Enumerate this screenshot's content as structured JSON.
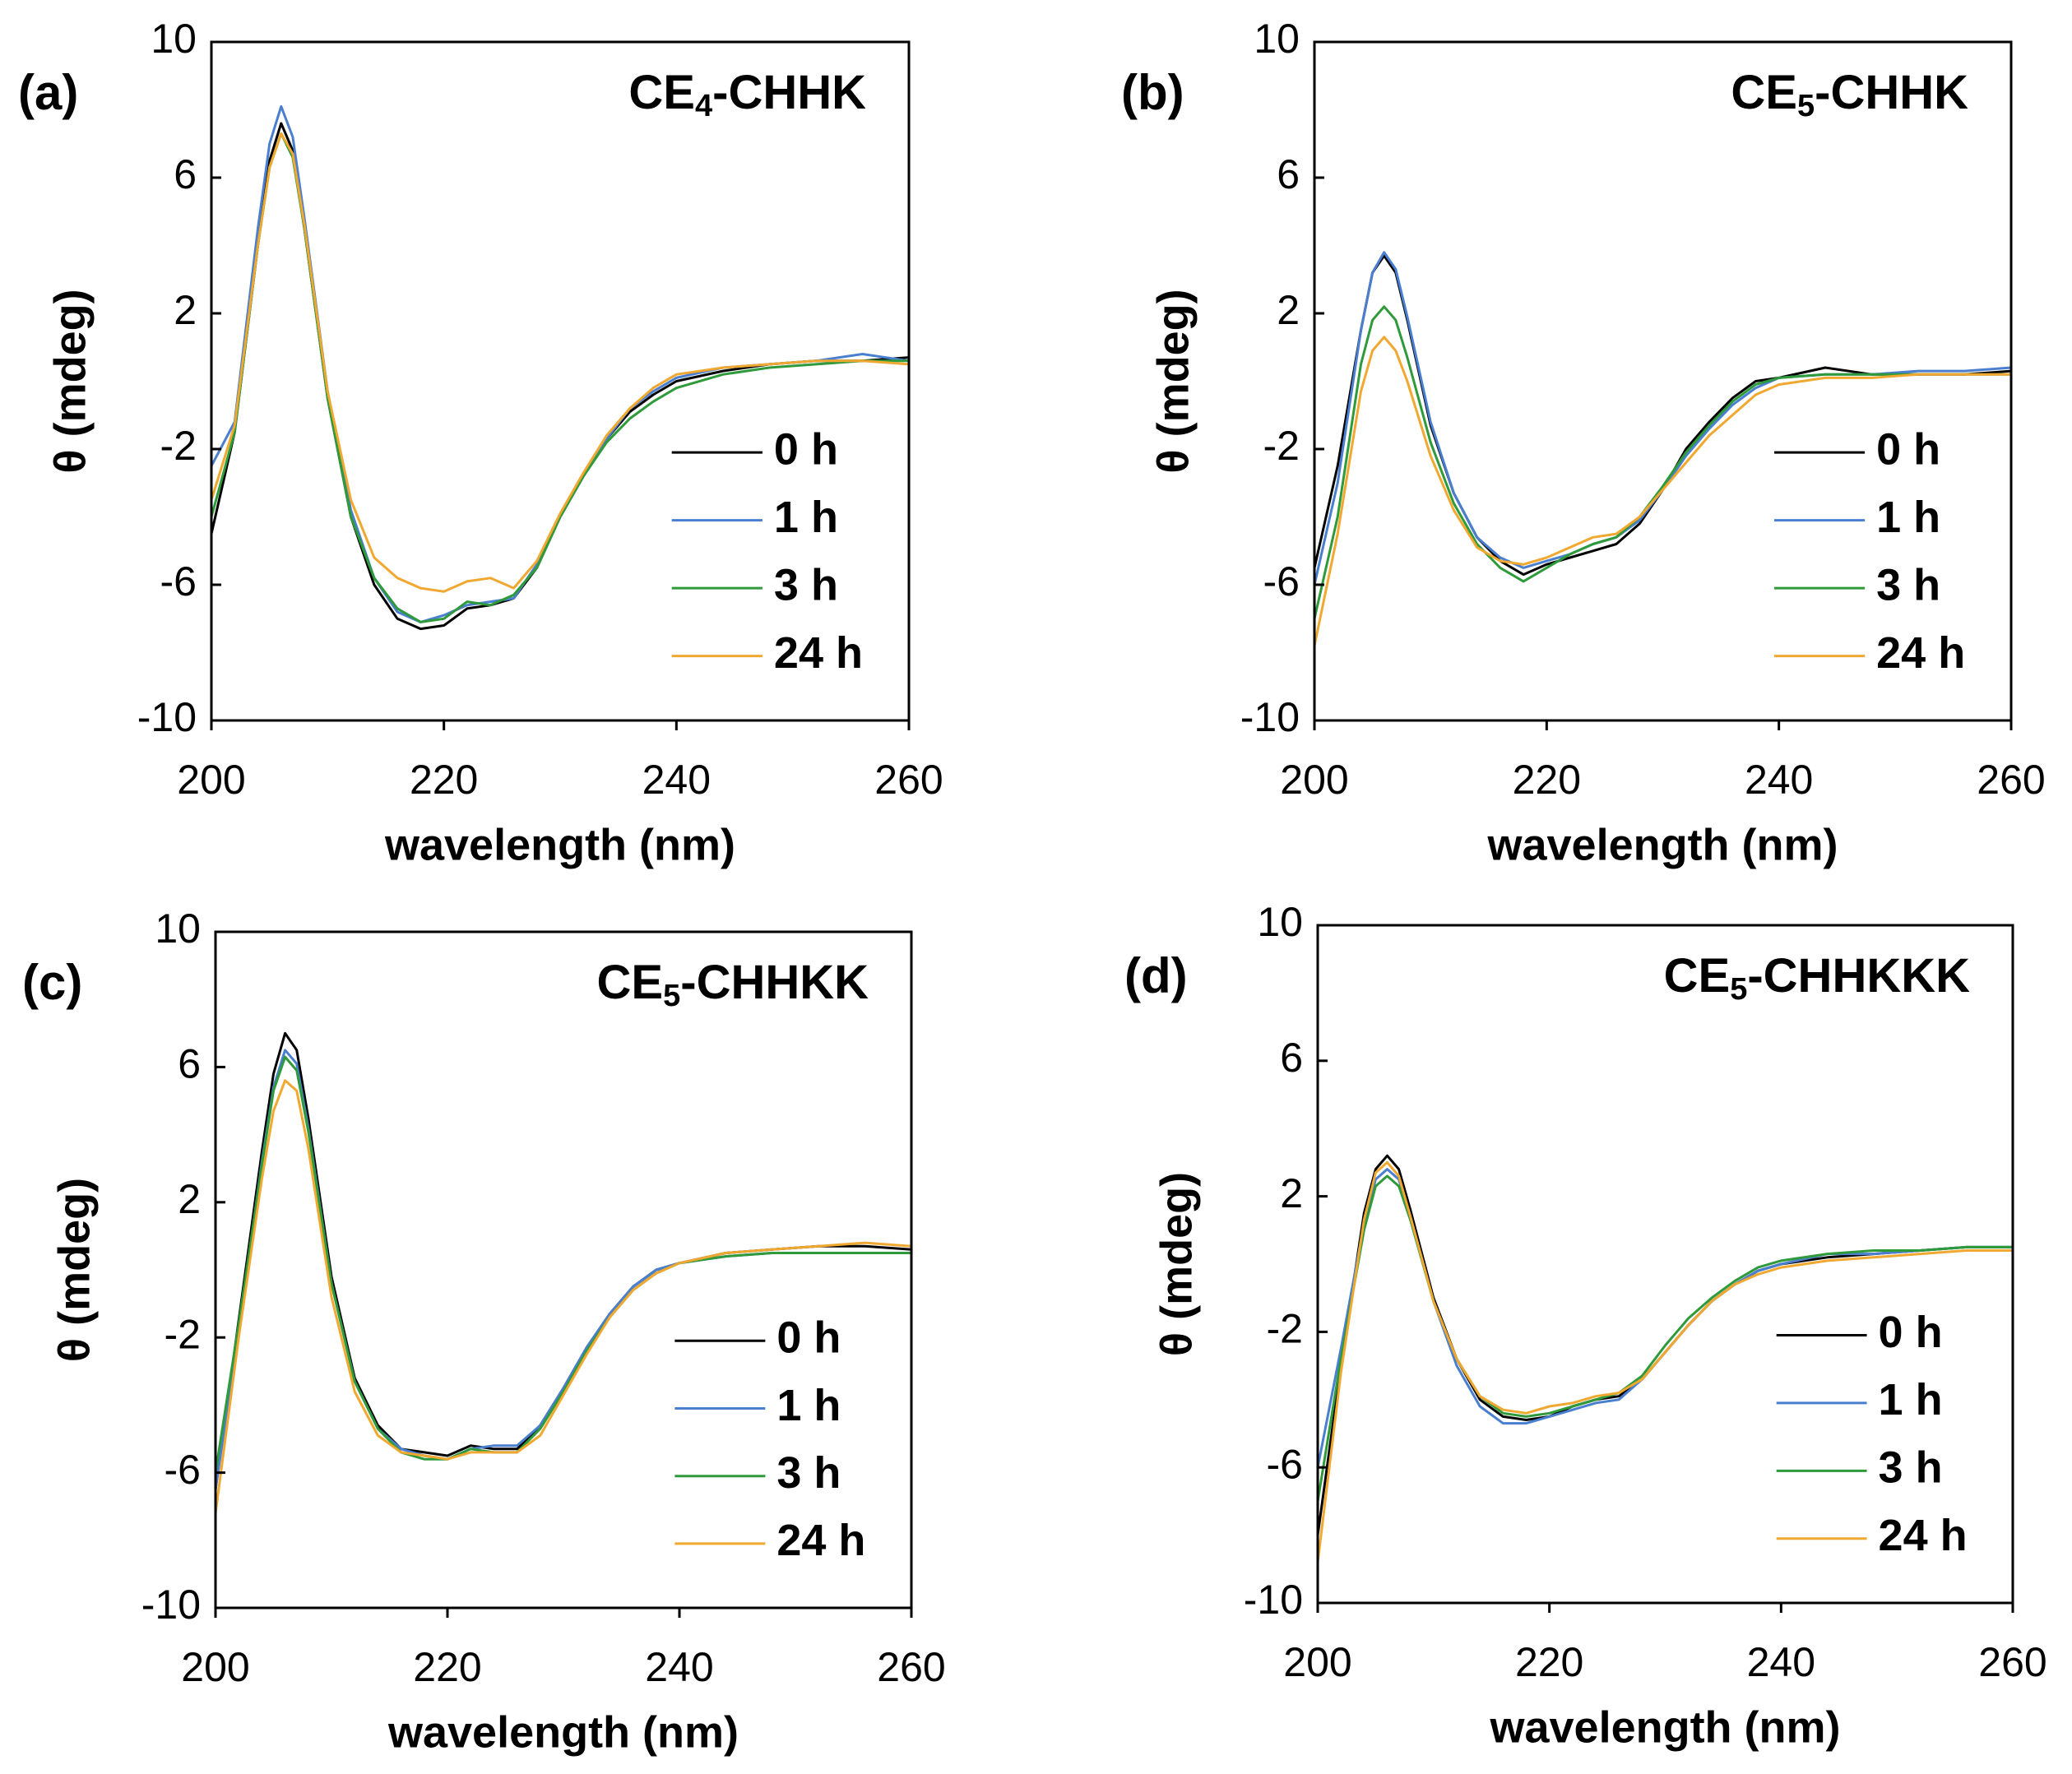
{
  "chart_data": [
    {
      "type": "line",
      "panel": "(a)",
      "title": [
        "CE",
        "4",
        "-CHHK"
      ],
      "x_label": "wavelength (nm)",
      "y_label": "θ (mdeg)",
      "xlim": [
        200,
        260
      ],
      "xticks": [
        200,
        220,
        240,
        260
      ],
      "ylim": [
        -10,
        10
      ],
      "yticks": [
        -10,
        -6,
        -2,
        2,
        6,
        10
      ],
      "legend": "lower right",
      "x": [
        200,
        202,
        204,
        205,
        206,
        207,
        208,
        210,
        212,
        214,
        216,
        218,
        220,
        222,
        224,
        226,
        228,
        230,
        232,
        234,
        236,
        238,
        240,
        244,
        248,
        252,
        256,
        260
      ],
      "series": [
        {
          "name": "0 h",
          "color": "#000000",
          "values": [
            -4.5,
            -1.5,
            4,
            6.5,
            7.6,
            6.8,
            4.5,
            -0.5,
            -4,
            -6,
            -7,
            -7.3,
            -7.2,
            -6.7,
            -6.6,
            -6.4,
            -5.5,
            -4,
            -2.8,
            -1.7,
            -0.9,
            -0.4,
            0,
            0.3,
            0.5,
            0.6,
            0.6,
            0.7
          ]
        },
        {
          "name": "1 h",
          "color": "#4a7fd0",
          "values": [
            -2.5,
            -1.2,
            4.5,
            7,
            8.1,
            7.2,
            4.8,
            -0.3,
            -3.8,
            -5.8,
            -6.8,
            -7.1,
            -6.9,
            -6.6,
            -6.5,
            -6.4,
            -5.4,
            -4,
            -2.8,
            -1.7,
            -0.8,
            -0.3,
            0.1,
            0.4,
            0.5,
            0.6,
            0.8,
            0.6
          ]
        },
        {
          "name": "3 h",
          "color": "#2e9a3a",
          "values": [
            -4,
            -1.5,
            4,
            6.3,
            7.3,
            6.6,
            4.5,
            -0.5,
            -4,
            -5.8,
            -6.7,
            -7.1,
            -7,
            -6.5,
            -6.6,
            -6.3,
            -5.5,
            -4,
            -2.8,
            -1.8,
            -1.1,
            -0.6,
            -0.2,
            0.2,
            0.4,
            0.5,
            0.6,
            0.6
          ]
        },
        {
          "name": "24 h",
          "color": "#f0a830",
          "values": [
            -3.5,
            -1.3,
            4,
            6.3,
            7.3,
            6.7,
            4.6,
            -0.3,
            -3.5,
            -5.2,
            -5.8,
            -6.1,
            -6.2,
            -5.9,
            -5.8,
            -6.1,
            -5.3,
            -3.9,
            -2.7,
            -1.6,
            -0.8,
            -0.2,
            0.2,
            0.4,
            0.5,
            0.6,
            0.6,
            0.5
          ]
        }
      ]
    },
    {
      "type": "line",
      "panel": "(b)",
      "title": [
        "CE",
        "5",
        "-CHHK"
      ],
      "x_label": "wavelength (nm)",
      "y_label": "θ (mdeg)",
      "xlim": [
        200,
        260
      ],
      "xticks": [
        200,
        220,
        240,
        260
      ],
      "ylim": [
        -10,
        10
      ],
      "yticks": [
        -10,
        -6,
        -2,
        2,
        6,
        10
      ],
      "legend": "lower right",
      "x": [
        200,
        202,
        204,
        205,
        206,
        207,
        208,
        210,
        212,
        214,
        216,
        218,
        220,
        222,
        224,
        226,
        228,
        230,
        232,
        234,
        236,
        238,
        240,
        244,
        248,
        252,
        256,
        260
      ],
      "series": [
        {
          "name": "0 h",
          "color": "#000000",
          "values": [
            -5.5,
            -2.5,
            1.5,
            3.2,
            3.7,
            3.2,
            1.8,
            -1.3,
            -3.3,
            -4.6,
            -5.3,
            -5.7,
            -5.4,
            -5.2,
            -5,
            -4.8,
            -4.2,
            -3.2,
            -2,
            -1.2,
            -0.5,
            0,
            0.1,
            0.4,
            0.2,
            0.2,
            0.2,
            0.3
          ]
        },
        {
          "name": "1 h",
          "color": "#4a7fd0",
          "values": [
            -6,
            -3,
            1.5,
            3.2,
            3.8,
            3.3,
            1.9,
            -1.2,
            -3.3,
            -4.6,
            -5.2,
            -5.5,
            -5.3,
            -5.1,
            -4.8,
            -4.6,
            -4.1,
            -3.2,
            -2.2,
            -1.4,
            -0.7,
            -0.2,
            0.1,
            0.2,
            0.2,
            0.3,
            0.3,
            0.4
          ]
        },
        {
          "name": "3 h",
          "color": "#2e9a3a",
          "values": [
            -7,
            -4,
            0.5,
            1.8,
            2.2,
            1.8,
            0.7,
            -1.8,
            -3.6,
            -4.8,
            -5.5,
            -5.9,
            -5.5,
            -5.1,
            -4.8,
            -4.6,
            -4,
            -3.1,
            -2.1,
            -1.3,
            -0.6,
            -0.1,
            0.1,
            0.2,
            0.2,
            0.2,
            0.2,
            0.2
          ]
        },
        {
          "name": "24 h",
          "color": "#f0a830",
          "values": [
            -7.8,
            -4.5,
            -0.3,
            0.9,
            1.3,
            0.9,
            0,
            -2.2,
            -3.8,
            -4.9,
            -5.3,
            -5.4,
            -5.2,
            -4.9,
            -4.6,
            -4.5,
            -4,
            -3.2,
            -2.4,
            -1.6,
            -1,
            -0.4,
            -0.1,
            0.1,
            0.1,
            0.2,
            0.2,
            0.2
          ]
        }
      ]
    },
    {
      "type": "line",
      "panel": "(c)",
      "title": [
        "CE",
        "5",
        "-CHHKK"
      ],
      "x_label": "wavelength (nm)",
      "y_label": "θ (mdeg)",
      "xlim": [
        200,
        260
      ],
      "xticks": [
        200,
        220,
        240,
        260
      ],
      "ylim": [
        -10,
        10
      ],
      "yticks": [
        -10,
        -6,
        -2,
        2,
        6,
        10
      ],
      "legend": "lower right",
      "x": [
        200,
        202,
        204,
        205,
        206,
        207,
        208,
        210,
        212,
        214,
        216,
        218,
        220,
        222,
        224,
        226,
        228,
        230,
        232,
        234,
        236,
        238,
        240,
        244,
        248,
        252,
        256,
        260
      ],
      "series": [
        {
          "name": "0 h",
          "color": "#000000",
          "values": [
            -6.5,
            -1.5,
            3.5,
            5.8,
            7,
            6.5,
            4.5,
            -0.2,
            -3.2,
            -4.6,
            -5.3,
            -5.4,
            -5.5,
            -5.2,
            -5.3,
            -5.3,
            -4.6,
            -3.5,
            -2.3,
            -1.3,
            -0.5,
            0,
            0.2,
            0.5,
            0.6,
            0.7,
            0.7,
            0.6
          ]
        },
        {
          "name": "1 h",
          "color": "#4a7fd0",
          "values": [
            -6.5,
            -1.8,
            3.2,
            5.4,
            6.5,
            6.1,
            4.2,
            -0.4,
            -3.3,
            -4.7,
            -5.3,
            -5.5,
            -5.6,
            -5.3,
            -5.2,
            -5.2,
            -4.6,
            -3.5,
            -2.3,
            -1.3,
            -0.5,
            0,
            0.2,
            0.4,
            0.5,
            0.5,
            0.5,
            0.5
          ]
        },
        {
          "name": "3 h",
          "color": "#2e9a3a",
          "values": [
            -6,
            -1.6,
            3.1,
            5.3,
            6.3,
            5.9,
            4.1,
            -0.4,
            -3.3,
            -4.7,
            -5.4,
            -5.6,
            -5.6,
            -5.3,
            -5.4,
            -5.4,
            -4.7,
            -3.6,
            -2.4,
            -1.4,
            -0.6,
            -0.1,
            0.2,
            0.4,
            0.5,
            0.5,
            0.5,
            0.5
          ]
        },
        {
          "name": "24 h",
          "color": "#f0a830",
          "values": [
            -7.2,
            -2,
            2.7,
            4.7,
            5.6,
            5.3,
            3.6,
            -0.8,
            -3.6,
            -4.9,
            -5.4,
            -5.5,
            -5.6,
            -5.4,
            -5.4,
            -5.4,
            -4.9,
            -3.7,
            -2.5,
            -1.4,
            -0.6,
            -0.1,
            0.2,
            0.5,
            0.6,
            0.7,
            0.8,
            0.7
          ]
        }
      ]
    },
    {
      "type": "line",
      "panel": "(d)",
      "title": [
        "CE",
        "5",
        "-CHHKKK"
      ],
      "x_label": "wavelength (nm)",
      "y_label": "θ (mdeg)",
      "xlim": [
        200,
        260
      ],
      "xticks": [
        200,
        220,
        240,
        260
      ],
      "ylim": [
        -10,
        10
      ],
      "yticks": [
        -10,
        -6,
        -2,
        2,
        6,
        10
      ],
      "legend": "lower right",
      "x": [
        200,
        202,
        204,
        205,
        206,
        207,
        208,
        210,
        212,
        214,
        216,
        218,
        220,
        222,
        224,
        226,
        228,
        230,
        232,
        234,
        236,
        238,
        240,
        244,
        248,
        252,
        256,
        260
      ],
      "series": [
        {
          "name": "0 h",
          "color": "#000000",
          "values": [
            -8,
            -3,
            1.5,
            2.8,
            3.2,
            2.8,
            1.6,
            -1,
            -2.8,
            -4,
            -4.5,
            -4.6,
            -4.5,
            -4.2,
            -4,
            -3.9,
            -3.4,
            -2.6,
            -1.8,
            -1.1,
            -0.6,
            -0.2,
            0,
            0.2,
            0.3,
            0.4,
            0.5,
            0.5
          ]
        },
        {
          "name": "1 h",
          "color": "#4a7fd0",
          "values": [
            -6,
            -2.5,
            1.2,
            2.5,
            2.8,
            2.5,
            1.4,
            -1.1,
            -3,
            -4.2,
            -4.7,
            -4.7,
            -4.5,
            -4.3,
            -4.1,
            -4,
            -3.4,
            -2.6,
            -1.8,
            -1.1,
            -0.6,
            -0.2,
            0,
            0.3,
            0.3,
            0.4,
            0.5,
            0.5
          ]
        },
        {
          "name": "3 h",
          "color": "#2e9a3a",
          "values": [
            -7,
            -2.8,
            1,
            2.3,
            2.6,
            2.3,
            1.3,
            -1.1,
            -2.8,
            -3.9,
            -4.4,
            -4.5,
            -4.4,
            -4.2,
            -4,
            -3.8,
            -3.3,
            -2.4,
            -1.6,
            -1,
            -0.5,
            -0.1,
            0.1,
            0.3,
            0.4,
            0.4,
            0.5,
            0.5
          ]
        },
        {
          "name": "24 h",
          "color": "#f0a830",
          "values": [
            -8.8,
            -3.2,
            1.3,
            2.7,
            3,
            2.6,
            1.4,
            -1.1,
            -2.8,
            -3.9,
            -4.3,
            -4.4,
            -4.2,
            -4.1,
            -3.9,
            -3.8,
            -3.4,
            -2.6,
            -1.8,
            -1.1,
            -0.6,
            -0.3,
            -0.1,
            0.1,
            0.2,
            0.3,
            0.4,
            0.4
          ]
        }
      ]
    }
  ]
}
